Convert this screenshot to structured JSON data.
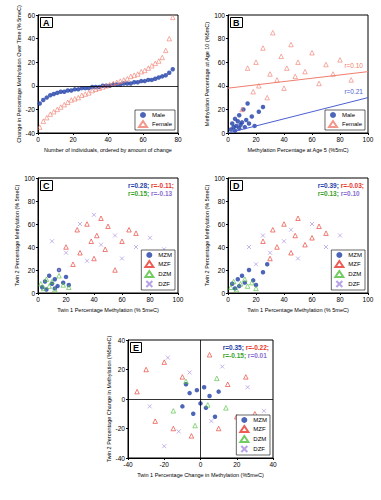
{
  "chart_data": [
    {
      "type": "scatter",
      "title": "A",
      "xlabel": "Number of individuals, ordered by amount of change",
      "ylabel": "Change in Percentage Methylation Over Time (% 5meC)",
      "xlim": [
        0,
        80
      ],
      "xticks": [
        0,
        20,
        40,
        60,
        80
      ],
      "ylim": [
        -40,
        60
      ],
      "yticks": [
        -40,
        -20,
        0,
        20,
        40,
        60
      ],
      "grid": false,
      "legend": "lower right",
      "series": [
        {
          "name": "Male",
          "color": "#1f3fa8",
          "marker": "circle",
          "x": [
            1,
            3,
            5,
            7,
            9,
            11,
            13,
            15,
            17,
            19,
            21,
            23,
            25,
            27,
            29,
            31,
            33,
            35,
            37,
            39,
            41,
            43,
            45,
            47,
            49,
            51,
            53,
            55,
            57,
            59,
            61,
            63,
            65,
            67,
            69,
            71,
            73,
            75,
            77
          ],
          "values": [
            -15,
            -12,
            -10,
            -8,
            -7,
            -6,
            -5,
            -5,
            -4,
            -4,
            -3,
            -3,
            -2,
            -2,
            -2,
            -1,
            -1,
            -1,
            0,
            0,
            0,
            1,
            1,
            1,
            2,
            2,
            2,
            3,
            3,
            4,
            4,
            5,
            5,
            6,
            7,
            8,
            9,
            11,
            14
          ]
        },
        {
          "name": "Female",
          "color": "#f07d6e",
          "marker": "triangle",
          "x": [
            1,
            3,
            5,
            7,
            9,
            11,
            13,
            15,
            17,
            19,
            21,
            23,
            25,
            27,
            29,
            31,
            33,
            35,
            37,
            39,
            41,
            43,
            45,
            47,
            49,
            51,
            53,
            55,
            57,
            59,
            61,
            63,
            65,
            67,
            69,
            71,
            73,
            75,
            77
          ],
          "values": [
            -35,
            -30,
            -27,
            -24,
            -22,
            -20,
            -18,
            -16,
            -14,
            -12,
            -11,
            -10,
            -8,
            -7,
            -6,
            -4,
            -3,
            -2,
            -1,
            0,
            1,
            2,
            3,
            4,
            5,
            6,
            8,
            9,
            10,
            12,
            13,
            15,
            17,
            19,
            21,
            24,
            30,
            40,
            58
          ]
        }
      ]
    },
    {
      "type": "scatter",
      "title": "B",
      "xlabel": "Methylation Percentage at Age 5 (%5mC)",
      "ylabel": "Methylation Percentage at Age 10 (%5mC)",
      "xlim": [
        0,
        100
      ],
      "xticks": [
        0,
        20,
        40,
        60,
        80,
        100
      ],
      "ylim": [
        0,
        100
      ],
      "yticks": [
        0,
        20,
        40,
        60,
        80,
        100
      ],
      "grid": false,
      "legend": "lower right",
      "series": [
        {
          "name": "Male",
          "color": "#1f3fa8",
          "marker": "circle",
          "x": [
            2,
            3,
            4,
            5,
            5,
            6,
            7,
            8,
            8,
            9,
            10,
            11,
            12,
            13,
            14,
            15,
            17,
            19,
            22,
            25
          ],
          "values": [
            3,
            8,
            5,
            2,
            12,
            6,
            10,
            4,
            15,
            7,
            9,
            20,
            5,
            11,
            25,
            8,
            14,
            6,
            18,
            22
          ]
        },
        {
          "name": "Female",
          "color": "#f07d6e",
          "marker": "triangle",
          "x": [
            10,
            14,
            18,
            20,
            22,
            25,
            28,
            30,
            32,
            35,
            38,
            40,
            42,
            45,
            48,
            50,
            55,
            60,
            65,
            70,
            75,
            80,
            88
          ],
          "values": [
            20,
            55,
            35,
            60,
            40,
            72,
            30,
            50,
            85,
            45,
            65,
            38,
            55,
            75,
            48,
            60,
            52,
            68,
            42,
            58,
            50,
            62,
            45
          ]
        }
      ],
      "lines": [
        {
          "color": "#f07d6e",
          "x": [
            0,
            100
          ],
          "values": [
            38,
            52
          ],
          "label": "r=0.10"
        },
        {
          "color": "#4a5fd0",
          "x": [
            0,
            100
          ],
          "values": [
            0,
            30
          ],
          "label": "r=0.21"
        }
      ]
    },
    {
      "type": "scatter",
      "title": "C",
      "xlabel": "Twin 1 Percentage Methylation (% 5meC)",
      "ylabel": "Twin 2 Percentage Methylation (% 5meC)",
      "xlim": [
        0,
        100
      ],
      "xticks": [
        0,
        20,
        40,
        60,
        80,
        100
      ],
      "ylim": [
        0,
        100
      ],
      "yticks": [
        0,
        20,
        40,
        60,
        80,
        100
      ],
      "grid": false,
      "legend": "lower right",
      "series": [
        {
          "name": "MZM",
          "color": "#1f3fa8",
          "marker": "circle",
          "x": [
            3,
            5,
            6,
            8,
            10,
            12,
            14,
            15,
            18,
            20,
            22,
            12
          ],
          "values": [
            5,
            10,
            3,
            15,
            8,
            12,
            6,
            20,
            9,
            14,
            7,
            4
          ]
        },
        {
          "name": "MZF",
          "color": "#e8352a",
          "marker": "triangle",
          "x": [
            20,
            25,
            28,
            30,
            35,
            38,
            40,
            42,
            45,
            48,
            50,
            55,
            60,
            65,
            70
          ],
          "values": [
            40,
            25,
            55,
            35,
            60,
            45,
            30,
            50,
            65,
            38,
            58,
            20,
            45,
            55,
            52
          ]
        },
        {
          "name": "DZM",
          "color": "#4fbf3a",
          "marker": "triangle",
          "x": [
            2,
            4,
            6,
            8,
            10,
            12,
            15,
            18,
            22
          ],
          "values": [
            8,
            4,
            12,
            6,
            10,
            3,
            15,
            7,
            5
          ]
        },
        {
          "name": "DZF",
          "color": "#a58be0",
          "marker": "x",
          "x": [
            10,
            15,
            20,
            30,
            35,
            40,
            45,
            55,
            60,
            70,
            80,
            90
          ],
          "values": [
            45,
            20,
            35,
            60,
            28,
            68,
            42,
            50,
            30,
            40,
            48,
            38
          ]
        }
      ],
      "annotations": [
        [
          {
            "text": "r=0.28;",
            "color": "#1f3fa8"
          },
          {
            "text": "r=-0.11;",
            "color": "#e8352a"
          }
        ],
        [
          {
            "text": "r=0.15;",
            "color": "#3a9f2a"
          },
          {
            "text": "r=-0.13",
            "color": "#8a6fd0"
          }
        ]
      ]
    },
    {
      "type": "scatter",
      "title": "D",
      "xlabel": "Twin 1 Percentage Methylation (% 5meC)",
      "ylabel": "Twin 2 Percentage Methylation (% 5meC)",
      "xlim": [
        0,
        100
      ],
      "xticks": [
        0,
        20,
        40,
        60,
        80,
        100
      ],
      "ylim": [
        0,
        100
      ],
      "yticks": [
        0,
        20,
        40,
        60,
        80,
        100
      ],
      "grid": false,
      "legend": "lower right",
      "series": [
        {
          "name": "MZM",
          "color": "#1f3fa8",
          "marker": "circle",
          "x": [
            3,
            5,
            7,
            8,
            10,
            12,
            15,
            18,
            20,
            25,
            28
          ],
          "values": [
            8,
            4,
            12,
            6,
            15,
            9,
            20,
            11,
            7,
            18,
            25
          ]
        },
        {
          "name": "MZF",
          "color": "#e8352a",
          "marker": "triangle",
          "x": [
            25,
            30,
            32,
            35,
            40,
            45,
            48,
            50,
            55,
            60,
            65,
            70
          ],
          "values": [
            45,
            30,
            55,
            40,
            60,
            35,
            50,
            65,
            42,
            48,
            58,
            52
          ]
        },
        {
          "name": "DZM",
          "color": "#4fbf3a",
          "marker": "triangle",
          "x": [
            2,
            4,
            6,
            9,
            12,
            14,
            17,
            20
          ],
          "values": [
            5,
            10,
            3,
            8,
            12,
            6,
            9,
            4
          ]
        },
        {
          "name": "DZF",
          "color": "#a58be0",
          "marker": "x",
          "x": [
            15,
            20,
            25,
            30,
            40,
            45,
            50,
            60,
            70,
            80,
            85
          ],
          "values": [
            40,
            25,
            50,
            35,
            45,
            55,
            30,
            60,
            40,
            50,
            35
          ]
        }
      ],
      "annotations": [
        [
          {
            "text": "r=0.39;",
            "color": "#1f3fa8"
          },
          {
            "text": "r=-0.03;",
            "color": "#e8352a"
          }
        ],
        [
          {
            "text": "r=0.13;",
            "color": "#3a9f2a"
          },
          {
            "text": "r=0.10",
            "color": "#8a6fd0"
          }
        ]
      ]
    },
    {
      "type": "scatter",
      "title": "E",
      "xlabel": "Twin 1 Percentage Change in Methylation (%5meC)",
      "ylabel": "Twin 2 Percentage Change in Methylation (%5meC)",
      "xlim": [
        -40,
        40
      ],
      "xticks": [
        -40,
        -20,
        0,
        20,
        40
      ],
      "ylim": [
        -40,
        40
      ],
      "yticks": [
        -40,
        -20,
        0,
        20,
        40
      ],
      "grid": false,
      "legend": "lower right",
      "series": [
        {
          "name": "MZM",
          "color": "#1f3fa8",
          "marker": "circle",
          "x": [
            -10,
            -6,
            -4,
            -2,
            0,
            2,
            3,
            5,
            8,
            10,
            -8
          ],
          "values": [
            -5,
            4,
            -10,
            6,
            -3,
            8,
            -6,
            2,
            -12,
            5,
            10
          ]
        },
        {
          "name": "MZF",
          "color": "#e8352a",
          "marker": "triangle",
          "x": [
            -30,
            -25,
            -20,
            -15,
            -10,
            -5,
            5,
            10,
            15,
            20,
            25,
            30,
            -35
          ],
          "values": [
            20,
            -15,
            25,
            -20,
            15,
            -25,
            30,
            -20,
            10,
            -12,
            15,
            -10,
            5
          ]
        },
        {
          "name": "DZM",
          "color": "#4fbf3a",
          "marker": "triangle",
          "x": [
            -15,
            -8,
            -3,
            4,
            9,
            14
          ],
          "values": [
            -8,
            12,
            -18,
            -4,
            14,
            -6
          ]
        },
        {
          "name": "DZF",
          "color": "#a58be0",
          "marker": "x",
          "x": [
            -28,
            -18,
            -12,
            -6,
            6,
            12,
            -20,
            26,
            35
          ],
          "values": [
            -5,
            28,
            -22,
            18,
            -15,
            22,
            -32,
            8,
            -8
          ]
        }
      ],
      "annotations": [
        [
          {
            "text": "r=0.35;",
            "color": "#1f3fa8"
          },
          {
            "text": "r=-0.22;",
            "color": "#e8352a"
          }
        ],
        [
          {
            "text": "r=-0.15;",
            "color": "#3a9f2a"
          },
          {
            "text": "r=0.01",
            "color": "#8a6fd0"
          }
        ]
      ]
    }
  ]
}
